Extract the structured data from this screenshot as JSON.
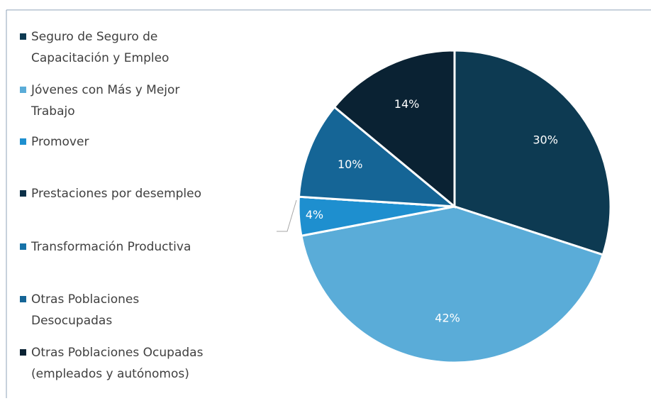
{
  "chart_data": {
    "type": "pie",
    "categories": [
      "Seguro de Seguro de Capacitación y Empleo",
      "Jóvenes con Más y Mejor Trabajo",
      "Promover",
      "Prestaciones por desempleo",
      "Transformación Productiva",
      "Otras Poblaciones Desocupadas",
      "Otras Poblaciones Ocupadas (empleados y autónomos)"
    ],
    "values": [
      30,
      42,
      4,
      0,
      0,
      10,
      14
    ],
    "value_labels": [
      "30%",
      "42%",
      "4%",
      null,
      null,
      "10%",
      "14%"
    ],
    "colors": [
      "#0d3a52",
      "#5aacd8",
      "#1e8fcf",
      "#0c3048",
      "#1672a8",
      "#156596",
      "#0a2233"
    ]
  }
}
